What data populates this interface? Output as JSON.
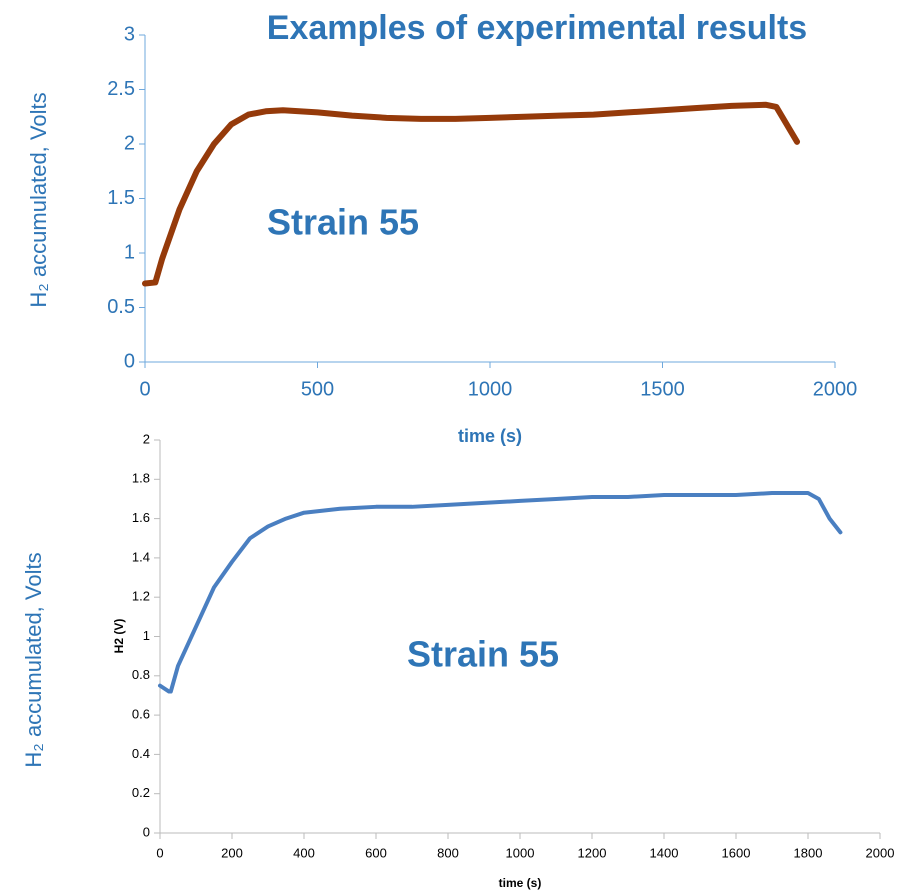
{
  "chart_data": [
    {
      "type": "line",
      "title": "Examples of experimental results",
      "ylabel": "H₂ accumulated, Volts",
      "xlabel": "time (s)",
      "annotation": "Strain 55",
      "x": [
        0,
        30,
        50,
        100,
        150,
        200,
        250,
        300,
        350,
        400,
        500,
        600,
        700,
        800,
        900,
        1000,
        1100,
        1200,
        1300,
        1400,
        1500,
        1600,
        1700,
        1800,
        1830,
        1860,
        1890
      ],
      "series": [
        {
          "color": "#953a0a",
          "values": [
            0.72,
            0.73,
            0.95,
            1.4,
            1.75,
            2.0,
            2.18,
            2.27,
            2.3,
            2.31,
            2.29,
            2.26,
            2.24,
            2.23,
            2.23,
            2.24,
            2.25,
            2.26,
            2.27,
            2.29,
            2.31,
            2.33,
            2.35,
            2.36,
            2.34,
            2.18,
            2.02
          ]
        }
      ],
      "xlim": [
        0,
        2000
      ],
      "xticks": [
        0,
        500,
        1000,
        1500,
        2000
      ],
      "ylim": [
        0,
        3
      ],
      "yticks": [
        0,
        0.5,
        1,
        1.5,
        2,
        2.5,
        3
      ]
    },
    {
      "type": "line",
      "outer_ylabel": "H₂ accumulated, Volts",
      "ylabel": "H2 (V)",
      "xlabel": "time (s)",
      "annotation": "Strain 55",
      "x": [
        0,
        25,
        30,
        50,
        100,
        150,
        200,
        250,
        300,
        350,
        400,
        500,
        600,
        700,
        800,
        900,
        1000,
        1100,
        1200,
        1300,
        1400,
        1500,
        1600,
        1700,
        1800,
        1830,
        1860,
        1890
      ],
      "series": [
        {
          "color": "#4a7fc1",
          "values": [
            0.75,
            0.72,
            0.72,
            0.85,
            1.05,
            1.25,
            1.38,
            1.5,
            1.56,
            1.6,
            1.63,
            1.65,
            1.66,
            1.66,
            1.67,
            1.68,
            1.69,
            1.7,
            1.71,
            1.71,
            1.72,
            1.72,
            1.72,
            1.73,
            1.73,
            1.7,
            1.6,
            1.53
          ]
        }
      ],
      "xlim": [
        0,
        2000
      ],
      "xticks": [
        0,
        200,
        400,
        600,
        800,
        1000,
        1200,
        1400,
        1600,
        1800,
        2000
      ],
      "ylim": [
        0,
        2
      ],
      "yticks": [
        0,
        0.2,
        0.4,
        0.6,
        0.8,
        1,
        1.2,
        1.4,
        1.6,
        1.8,
        2
      ]
    }
  ]
}
